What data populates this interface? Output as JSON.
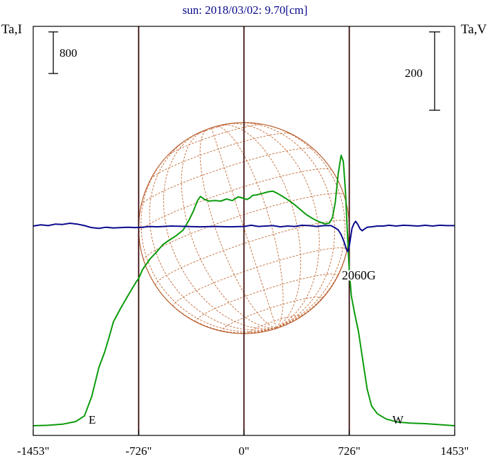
{
  "colors": {
    "background": "#ffffff",
    "frame": "#000000",
    "intensity_line": "#0a9a0a",
    "polarization_line": "#08088c",
    "disk_outline": "#b4501e",
    "grid_lines": "#c06a36",
    "limb_markers": "#3a0a0a",
    "title_text": "#08088c"
  },
  "chart_data": {
    "type": "line",
    "title": "sun: 2018/03/02: 9.70[cm]",
    "ylabel_left": "Ta,I",
    "ylabel_right": "Ta,V",
    "x_range": [
      -1453,
      1453
    ],
    "x_ticks": [
      {
        "value": -1453,
        "label": "-1453\""
      },
      {
        "value": -726,
        "label": "-726\""
      },
      {
        "value": 0,
        "label": "0\""
      },
      {
        "value": 726,
        "label": "726\""
      },
      {
        "value": 1453,
        "label": "1453\""
      }
    ],
    "grid": false,
    "vertical_markers": [
      {
        "x": -726,
        "label": "E"
      },
      {
        "x": 0,
        "label": ""
      },
      {
        "x": 726,
        "label": "W"
      }
    ],
    "solar_disk": {
      "radius_arcsec": 726,
      "p_angle_deg": 18,
      "b0_deg": -7
    },
    "scale_bars": [
      {
        "label": "800",
        "axis": "left",
        "value": 800
      },
      {
        "label": "200",
        "axis": "right",
        "value": 200
      }
    ],
    "annotations": [
      {
        "text": "2060G",
        "x": 830,
        "series": "Ta,V"
      }
    ],
    "series": [
      {
        "name": "Ta,I",
        "axis": "left",
        "points": [
          [
            -1453,
            0
          ],
          [
            -1350,
            8
          ],
          [
            -1250,
            30
          ],
          [
            -1160,
            80
          ],
          [
            -1100,
            190
          ],
          [
            -1050,
            560
          ],
          [
            -1000,
            1120
          ],
          [
            -960,
            1420
          ],
          [
            -930,
            1700
          ],
          [
            -900,
            2000
          ],
          [
            -850,
            2260
          ],
          [
            -800,
            2500
          ],
          [
            -740,
            2780
          ],
          [
            -726,
            2830
          ],
          [
            -700,
            3000
          ],
          [
            -650,
            3200
          ],
          [
            -600,
            3350
          ],
          [
            -560,
            3480
          ],
          [
            -520,
            3560
          ],
          [
            -470,
            3650
          ],
          [
            -420,
            3760
          ],
          [
            -380,
            3950
          ],
          [
            -350,
            4120
          ],
          [
            -320,
            4330
          ],
          [
            -300,
            4410
          ],
          [
            -270,
            4350
          ],
          [
            -240,
            4320
          ],
          [
            -200,
            4330
          ],
          [
            -160,
            4320
          ],
          [
            -120,
            4360
          ],
          [
            -80,
            4330
          ],
          [
            -40,
            4400
          ],
          [
            -10,
            4380
          ],
          [
            20,
            4350
          ],
          [
            40,
            4380
          ],
          [
            60,
            4430
          ],
          [
            90,
            4440
          ],
          [
            130,
            4470
          ],
          [
            170,
            4500
          ],
          [
            200,
            4510
          ],
          [
            230,
            4470
          ],
          [
            260,
            4420
          ],
          [
            300,
            4350
          ],
          [
            350,
            4250
          ],
          [
            400,
            4130
          ],
          [
            430,
            4060
          ],
          [
            470,
            3990
          ],
          [
            510,
            3930
          ],
          [
            560,
            3880
          ],
          [
            590,
            3900
          ],
          [
            610,
            4000
          ],
          [
            630,
            4300
          ],
          [
            650,
            4850
          ],
          [
            670,
            5200
          ],
          [
            685,
            5080
          ],
          [
            700,
            4500
          ],
          [
            715,
            3600
          ],
          [
            726,
            3000
          ],
          [
            740,
            2500
          ],
          [
            760,
            2200
          ],
          [
            790,
            1800
          ],
          [
            820,
            1250
          ],
          [
            850,
            700
          ],
          [
            880,
            380
          ],
          [
            920,
            230
          ],
          [
            980,
            130
          ],
          [
            1060,
            70
          ],
          [
            1150,
            50
          ],
          [
            1250,
            40
          ],
          [
            1350,
            20
          ],
          [
            1453,
            0
          ]
        ]
      },
      {
        "name": "Ta,V",
        "axis": "right",
        "points": [
          [
            -1453,
            0
          ],
          [
            -1400,
            3
          ],
          [
            -1350,
            1
          ],
          [
            -1300,
            5
          ],
          [
            -1250,
            4
          ],
          [
            -1200,
            7
          ],
          [
            -1150,
            5
          ],
          [
            -1100,
            1
          ],
          [
            -1050,
            -4
          ],
          [
            -1000,
            -6
          ],
          [
            -950,
            -3
          ],
          [
            -900,
            -5
          ],
          [
            -850,
            -4
          ],
          [
            -800,
            -3
          ],
          [
            -750,
            -4
          ],
          [
            -700,
            -3
          ],
          [
            -650,
            -1
          ],
          [
            -600,
            -2
          ],
          [
            -500,
            0
          ],
          [
            -400,
            -1
          ],
          [
            -300,
            -2
          ],
          [
            -200,
            -1
          ],
          [
            -100,
            -2
          ],
          [
            0,
            -1
          ],
          [
            50,
            2
          ],
          [
            100,
            -1
          ],
          [
            150,
            0
          ],
          [
            200,
            1
          ],
          [
            250,
            -2
          ],
          [
            300,
            0
          ],
          [
            350,
            -1
          ],
          [
            400,
            2
          ],
          [
            450,
            1
          ],
          [
            500,
            -1
          ],
          [
            550,
            1
          ],
          [
            600,
            1
          ],
          [
            630,
            -5
          ],
          [
            650,
            -10
          ],
          [
            670,
            -22
          ],
          [
            690,
            -40
          ],
          [
            705,
            -58
          ],
          [
            715,
            -65
          ],
          [
            725,
            -55
          ],
          [
            735,
            -30
          ],
          [
            745,
            -6
          ],
          [
            758,
            6
          ],
          [
            770,
            12
          ],
          [
            785,
            4
          ],
          [
            800,
            -7
          ],
          [
            815,
            -12
          ],
          [
            830,
            -8
          ],
          [
            850,
            -3
          ],
          [
            880,
            -2
          ],
          [
            920,
            0
          ],
          [
            960,
            0
          ],
          [
            1000,
            2
          ],
          [
            1050,
            0
          ],
          [
            1100,
            2
          ],
          [
            1150,
            1
          ],
          [
            1200,
            0
          ],
          [
            1250,
            2
          ],
          [
            1300,
            0
          ],
          [
            1350,
            2
          ],
          [
            1400,
            1
          ],
          [
            1453,
            1
          ]
        ]
      }
    ]
  }
}
